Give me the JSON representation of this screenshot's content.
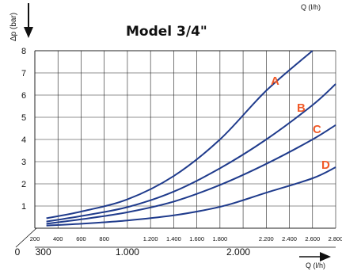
{
  "chart_data": {
    "type": "line",
    "title": "Model 3/4\"",
    "ylabel": "Δp (bar)",
    "xlabel_top": "Q (l/h)",
    "xlabel_bottom": "Q (l/h)",
    "y_ticks": [
      "1",
      "2",
      "3",
      "4",
      "5",
      "6",
      "7",
      "8"
    ],
    "top_x_ticks": [
      "200",
      "400",
      "600",
      "800",
      "1.200",
      "1.400",
      "1.600",
      "1.800",
      "2.200",
      "2.400",
      "2.600",
      "2.800"
    ],
    "bottom_x_ticks": [
      "0",
      "300",
      "1.000",
      "2.000"
    ],
    "ylim": [
      0,
      8
    ],
    "xlim": [
      200,
      2800
    ],
    "label_color": "#f05a28",
    "line_color": "#1f3b8c",
    "series": [
      {
        "name": "A",
        "x": [
          300,
          600,
          1000,
          1400,
          1800,
          2200,
          2600
        ],
        "y": [
          0.45,
          0.75,
          1.3,
          2.35,
          4.0,
          6.2,
          8.0
        ]
      },
      {
        "name": "B",
        "x": [
          300,
          600,
          1000,
          1400,
          1800,
          2200,
          2600,
          2800
        ],
        "y": [
          0.3,
          0.55,
          0.95,
          1.65,
          2.7,
          4.0,
          5.55,
          6.5
        ]
      },
      {
        "name": "C",
        "x": [
          300,
          600,
          1000,
          1400,
          1800,
          2200,
          2600,
          2800
        ],
        "y": [
          0.2,
          0.4,
          0.72,
          1.2,
          1.95,
          2.9,
          4.0,
          4.65
        ]
      },
      {
        "name": "D",
        "x": [
          300,
          600,
          1000,
          1400,
          1700,
          1900,
          2200,
          2600,
          2800
        ],
        "y": [
          0.12,
          0.2,
          0.35,
          0.58,
          0.85,
          1.1,
          1.6,
          2.25,
          2.75
        ]
      }
    ]
  }
}
